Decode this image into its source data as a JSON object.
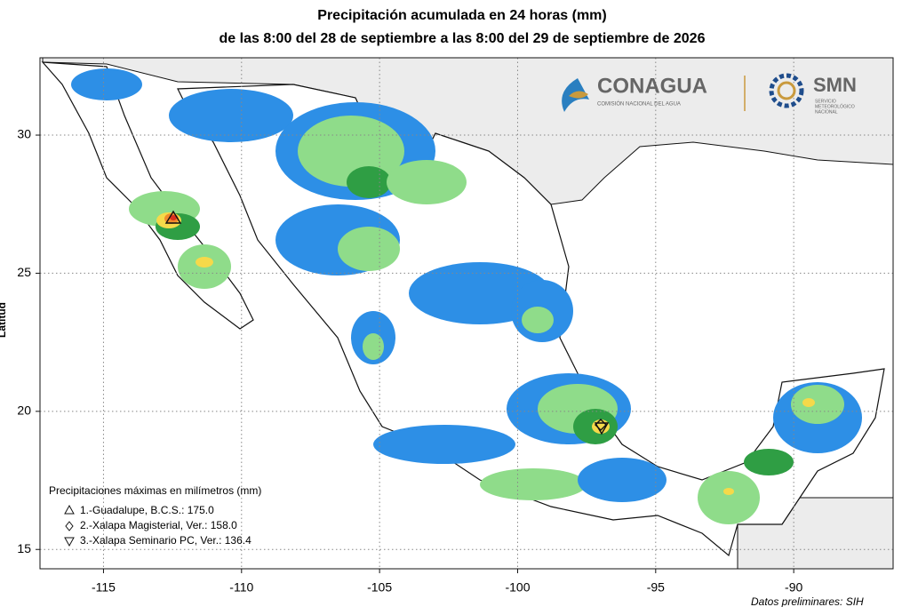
{
  "header": {
    "title": [
      "Precipitación acumulada en 24 horas (mm)",
      "de las 8:00 del 28 de septiembre a las 8:00 del 29 de septiembre de 2026"
    ]
  },
  "map": {
    "xlim": [
      -117.3,
      -86.4
    ],
    "ylim": [
      14.3,
      32.8
    ],
    "xticks": [
      -115,
      -110,
      -105,
      -100,
      -95,
      -90
    ],
    "yticks": [
      15,
      20,
      25,
      30
    ],
    "grid": true,
    "ylabel": "Latitud",
    "note": "Datos preliminares: SIH"
  },
  "logos": {
    "conagua": "CONAGUA",
    "conagua_sub": "COMISIÓN NACIONAL DEL AGUA",
    "smn": "SMN",
    "smn_sub": [
      "SERVICIO",
      "METEOROLÓGICO",
      "NACIONAL"
    ]
  },
  "legend": {
    "title": "Precipitaciones máximas en milímetros (mm)",
    "items": [
      "1.-Guadalupe, B.C.S.: 175.0",
      "2.-Xalapa Magisterial, Ver.: 158.0",
      "3.-Xalapa Seminario PC, Ver.: 136.4"
    ]
  }
}
